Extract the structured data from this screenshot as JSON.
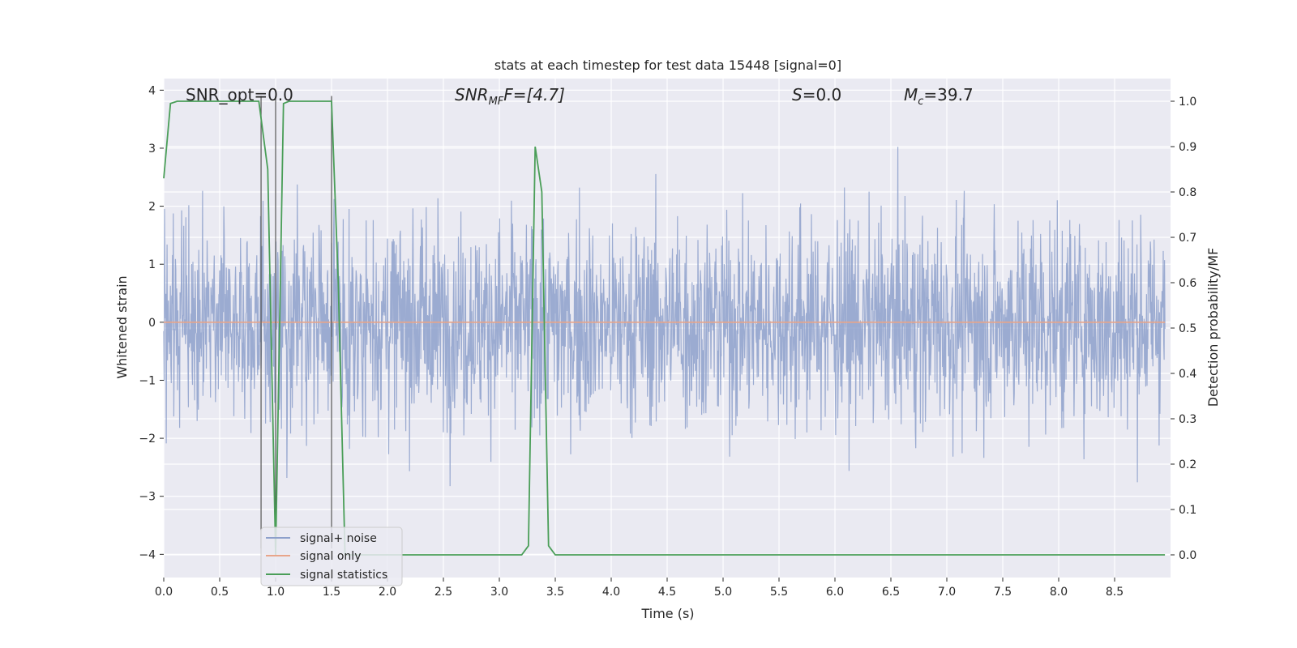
{
  "chart_data": {
    "type": "line",
    "title": "stats at each timestep for test data 15448 [signal=0]",
    "xlabel": "Time (s)",
    "ylabel": "Whitened strain",
    "ylabel_right": "Detection probability/MF",
    "xlim": [
      0.0,
      9.0
    ],
    "ylim": [
      -4.4,
      4.2
    ],
    "ylim_right": [
      -0.05,
      1.05
    ],
    "xticks": [
      "0.0",
      "0.5",
      "1.0",
      "1.5",
      "2.0",
      "2.5",
      "3.0",
      "3.5",
      "4.0",
      "4.5",
      "5.0",
      "5.5",
      "6.0",
      "6.5",
      "7.0",
      "7.5",
      "8.0",
      "8.5"
    ],
    "yticks": [
      "4",
      "3",
      "2",
      "1",
      "0",
      "−1",
      "−2",
      "−3",
      "−4"
    ],
    "yticks_right": [
      "1.0",
      "0.9",
      "0.8",
      "0.7",
      "0.6",
      "0.5",
      "0.4",
      "0.3",
      "0.2",
      "0.1",
      "0.0"
    ],
    "annotations": {
      "snr_opt": "SNR_opt=0.0",
      "snr_mf_base": "SNR",
      "snr_mf_sub": "MF",
      "snr_mf_rest": "F=[4.7]",
      "s_label": "S",
      "s_value": "=0.0",
      "mc_base": "M",
      "mc_sub": "c",
      "mc_value": "=39.7"
    },
    "grid": true,
    "legend_position": "lower-left",
    "series": [
      {
        "name": "signal+ noise",
        "color": "#8da0cb",
        "description_level": "whitened noise strain, approximately Gaussian, range about -3.9 to 3.9"
      },
      {
        "name": "signal only",
        "color": "#e8a58a",
        "values_constant": 0.0
      },
      {
        "name": "signal statistics",
        "color": "#4a9e58",
        "x": [
          0.0,
          0.06,
          0.12,
          0.85,
          0.93,
          1.0,
          1.07,
          1.12,
          1.5,
          1.56,
          1.62,
          3.2,
          3.26,
          3.32,
          3.38,
          3.44,
          3.5,
          8.95
        ],
        "values": [
          0.83,
          0.995,
          1.0,
          1.0,
          0.85,
          0.0,
          0.995,
          1.0,
          1.0,
          0.6,
          0.0,
          0.0,
          0.02,
          0.9,
          0.8,
          0.02,
          0.0,
          0.0
        ]
      }
    ],
    "vlines": [
      0.87,
      1.0,
      1.5
    ]
  }
}
